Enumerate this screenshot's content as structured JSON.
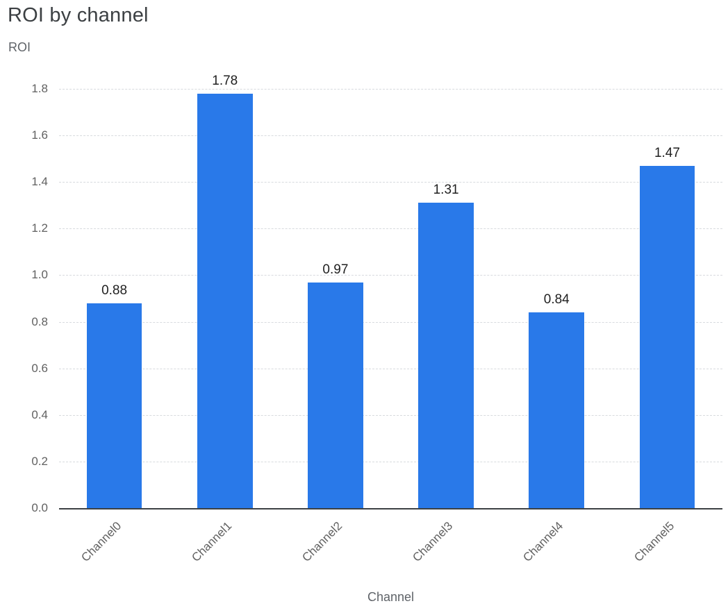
{
  "title": "ROI by channel",
  "colors": {
    "bar": "#2979e9",
    "title_text": "#3c4043",
    "axis_title_text": "#5f6368",
    "tick_text": "#616161",
    "grid_line": "#d7dade",
    "axis_line": "#3c4043",
    "value_text": "#1f1f1f"
  },
  "chart_data": {
    "type": "bar",
    "title": "ROI by channel",
    "categories": [
      "Channel0",
      "Channel1",
      "Channel2",
      "Channel3",
      "Channel4",
      "Channel5"
    ],
    "values": [
      0.88,
      1.78,
      0.97,
      1.31,
      0.84,
      1.47
    ],
    "value_labels": [
      "0.88",
      "1.78",
      "0.97",
      "1.31",
      "0.84",
      "1.47"
    ],
    "xlabel": "Channel",
    "ylabel": "ROI",
    "ylim": [
      0,
      1.8
    ],
    "yticks": [
      0.0,
      0.2,
      0.4,
      0.6,
      0.8,
      1.0,
      1.2,
      1.4,
      1.6,
      1.8
    ],
    "ytick_labels": [
      "0.0",
      "0.2",
      "0.4",
      "0.6",
      "0.8",
      "1.0",
      "1.2",
      "1.4",
      "1.6",
      "1.8"
    ],
    "grid": "horizontal-dashed",
    "legend": "none",
    "x_tick_rotation_deg": -45
  }
}
